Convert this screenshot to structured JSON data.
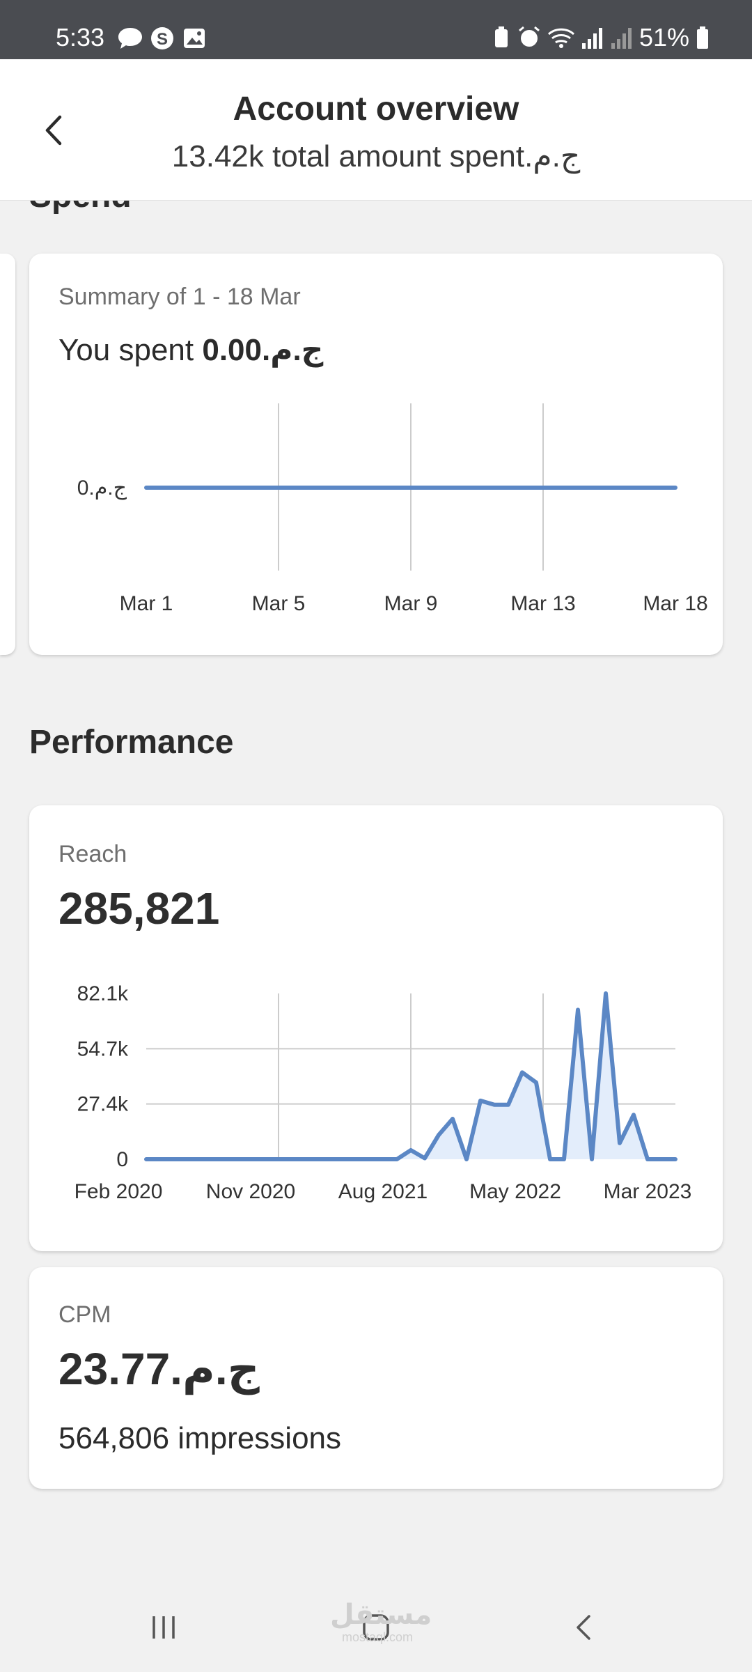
{
  "status_bar": {
    "time": "5:33",
    "battery": "51%",
    "icons": [
      "message-icon",
      "s-badge-icon",
      "gallery-icon",
      "battery-saver-icon",
      "alarm-icon",
      "wifi-icon",
      "signal-icon",
      "signal-2-icon",
      "battery-icon"
    ]
  },
  "header": {
    "title": "Account overview",
    "subtitle": "13.42k total amount spentج.م.‏"
  },
  "spend": {
    "section_title": "Spend",
    "card": {
      "label": "Summary of 1 - 18 Mar",
      "spent_prefix": "You spent ",
      "spent_value": "0.00ج.م.‏"
    }
  },
  "performance": {
    "section_title": "Performance",
    "reach": {
      "label": "Reach",
      "value": "285,821"
    },
    "cpm": {
      "label": "CPM",
      "value": "23.77ج.م.‏",
      "impressions": "564,806 impressions"
    }
  },
  "colors": {
    "line": "#5b87c5",
    "fill": "#e3edfb",
    "grid": "#cccccc",
    "header_bg": "#ffffff",
    "status_bg": "#4a4c51"
  },
  "watermark": {
    "text": "مستقل",
    "sub": "mostaql.com"
  },
  "nav": {
    "icons": [
      "recent-apps-icon",
      "home-icon",
      "back-nav-icon"
    ]
  },
  "chart_data": [
    {
      "type": "line",
      "x": [
        "Mar 1",
        "Mar 5",
        "Mar 9",
        "Mar 13",
        "Mar 18"
      ],
      "y_ticks": [
        "0ج.م.‏"
      ],
      "series": [
        {
          "values": [
            0,
            0,
            0,
            0,
            0
          ]
        }
      ],
      "ylim": [
        0,
        1
      ],
      "grid": "vertical"
    },
    {
      "type": "area",
      "x_ticks": [
        "Feb 2020",
        "Nov 2020",
        "Aug 2021",
        "May 2022",
        "Mar 2023"
      ],
      "y_ticks": [
        "0",
        "27.4k",
        "54.7k",
        "82.1k"
      ],
      "ylim": [
        0,
        82100
      ],
      "grid": "both",
      "series": [
        {
          "values": [
            0,
            0,
            0,
            0,
            0,
            0,
            0,
            0,
            0,
            0,
            0,
            0,
            0,
            0,
            0,
            0,
            0,
            0,
            0,
            4500,
            500,
            12000,
            20000,
            0,
            29000,
            27000,
            27000,
            43000,
            38000,
            0,
            0,
            74000,
            0,
            82100,
            8000,
            22000,
            0,
            0,
            0
          ]
        }
      ]
    }
  ]
}
